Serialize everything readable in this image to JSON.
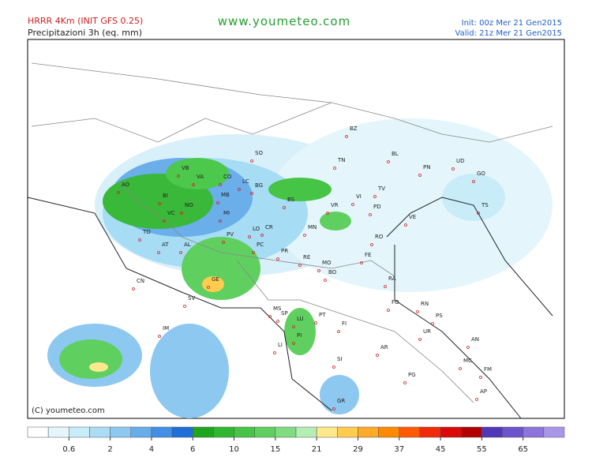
{
  "header": {
    "model": "HRRR 4Km (INIT GFS 0.25)",
    "product": "Precipitazioni 3h (eq. mm)",
    "site": "www.youmeteo.com",
    "init": "Init: 00z Mer  21 Gen2015",
    "valid": "Valid: 21z Mer  21 Gen2015"
  },
  "map": {
    "copyright": "(C) youmeteo.com",
    "cities": [
      "BZ",
      "TN",
      "SO",
      "BG",
      "LC",
      "CO",
      "VA",
      "VB",
      "BI",
      "NO",
      "MB",
      "MI",
      "AO",
      "VC",
      "TO",
      "AT",
      "AL",
      "PV",
      "LO",
      "CR",
      "BS",
      "VR",
      "VI",
      "TV",
      "PD",
      "VE",
      "RO",
      "MN",
      "PC",
      "PR",
      "RE",
      "MO",
      "FE",
      "BO",
      "RA",
      "CN",
      "SV",
      "GE",
      "SP",
      "MS",
      "LU",
      "PT",
      "FI",
      "PI",
      "LI",
      "FO",
      "RN",
      "PS",
      "UR",
      "AN",
      "AR",
      "SI",
      "PG",
      "MC",
      "FM",
      "AP",
      "GR",
      "IM",
      "BL",
      "PN",
      "UD",
      "GO",
      "TS"
    ]
  },
  "colorbar": {
    "colors": [
      "#ffffff",
      "#e4f6fc",
      "#c8ecf8",
      "#aadcf4",
      "#8cc8f0",
      "#68acea",
      "#4290e4",
      "#1f6fd9",
      "#1ea51e",
      "#30b630",
      "#46c446",
      "#5fd05f",
      "#80dc80",
      "#b4eeb4",
      "#ffe88c",
      "#ffcc50",
      "#ffaa28",
      "#ff8a00",
      "#ff5a00",
      "#f02a0a",
      "#d80a0a",
      "#b00000",
      "#5038b8",
      "#6e54cc",
      "#8c74dc",
      "#aa96e8"
    ],
    "labels": [
      "0.6",
      "2",
      "4",
      "6",
      "10",
      "15",
      "21",
      "29",
      "37",
      "45",
      "55",
      "65"
    ]
  }
}
